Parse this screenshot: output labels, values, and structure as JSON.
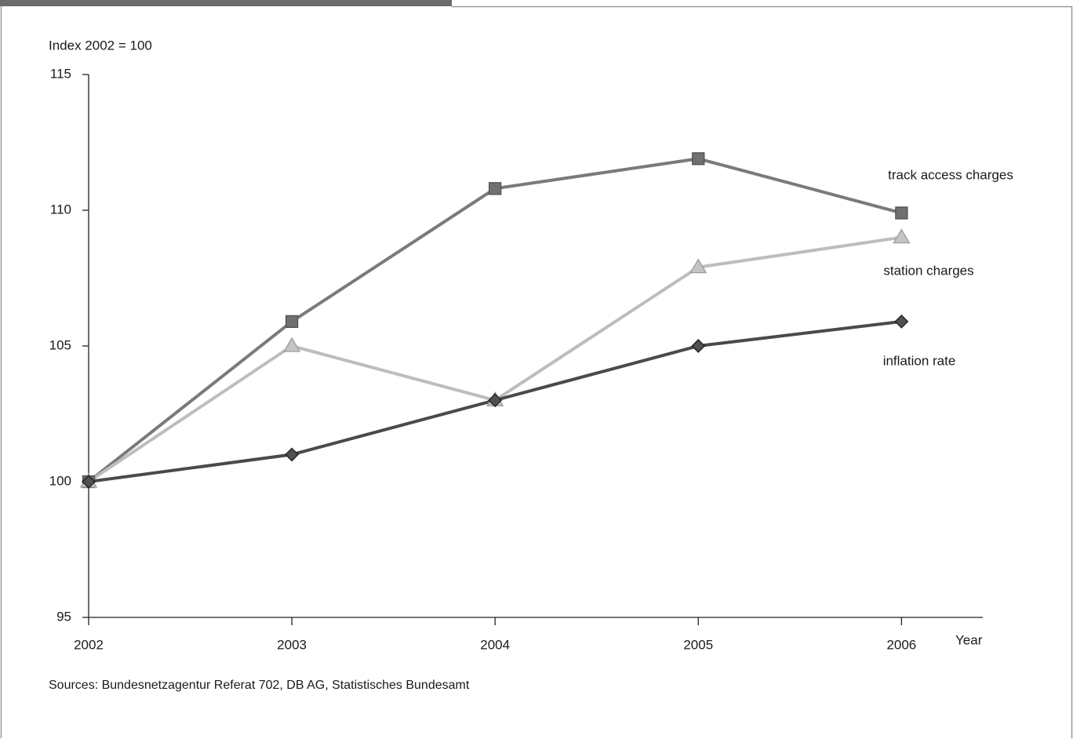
{
  "chart_data": {
    "type": "line",
    "ylabel": "Index 2002 = 100",
    "xlabel": "Year",
    "source": "Sources: Bundesnetzagentur Referat 702, DB AG, Statistisches Bundesamt",
    "x": [
      2002,
      2003,
      2004,
      2005,
      2006
    ],
    "xlim": [
      2002,
      2006.4
    ],
    "xticks": [
      2002,
      2003,
      2004,
      2005,
      2006
    ],
    "ylim": [
      95,
      115
    ],
    "yticks": [
      95,
      100,
      105,
      110,
      115
    ],
    "grid": false,
    "series": [
      {
        "name": "track access charges",
        "color": "#7a7a7a",
        "marker": "square",
        "values": [
          100,
          105.9,
          110.8,
          111.9,
          109.9
        ]
      },
      {
        "name": "station charges",
        "color": "#bdbdbd",
        "marker": "triangle",
        "values": [
          100,
          105,
          103,
          107.9,
          109
        ]
      },
      {
        "name": "inflation rate",
        "color": "#4a4a4a",
        "marker": "diamond",
        "values": [
          100,
          101,
          103,
          105,
          105.9
        ]
      }
    ]
  }
}
